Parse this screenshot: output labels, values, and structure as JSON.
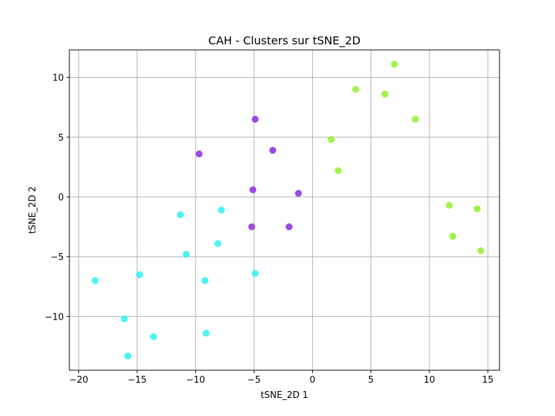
{
  "chart_data": {
    "type": "scatter",
    "title": "CAH - Clusters sur tSNE_2D",
    "xlabel": "tSNE_2D 1",
    "ylabel": "tSNE_2D 2",
    "xlim": [
      -20.8,
      16.0
    ],
    "ylim": [
      -14.5,
      12.3
    ],
    "xticks": [
      -20,
      -15,
      -10,
      -5,
      0,
      5,
      10,
      15
    ],
    "yticks": [
      -10,
      -5,
      0,
      5,
      10
    ],
    "xtick_labels": [
      "−20",
      "−15",
      "−10",
      "−5",
      "0",
      "5",
      "10",
      "15"
    ],
    "ytick_labels": [
      "−10",
      "−5",
      "0",
      "5",
      "10"
    ],
    "grid": true,
    "series": [
      {
        "color": "#8a2be2",
        "x": [
          -4.9,
          -9.7,
          -3.4,
          -5.1,
          -1.2,
          -5.2,
          -2.0
        ],
        "y": [
          6.5,
          3.6,
          3.9,
          0.6,
          0.3,
          -2.5,
          -2.5
        ]
      },
      {
        "color": "#2ef2f2",
        "x": [
          -11.3,
          -7.8,
          -8.1,
          -10.8,
          -4.9,
          -14.8,
          -9.2,
          -18.6,
          -16.1,
          -13.6,
          -9.1,
          -15.8
        ],
        "y": [
          -1.5,
          -1.1,
          -3.9,
          -4.8,
          -6.4,
          -6.5,
          -7.0,
          -7.0,
          -10.2,
          -11.7,
          -11.4,
          -13.3
        ]
      },
      {
        "color": "#90f02e",
        "x": [
          7.0,
          3.7,
          6.2,
          8.8,
          1.6,
          2.2,
          11.7,
          14.1,
          12.0,
          14.4
        ],
        "y": [
          11.1,
          9.0,
          8.6,
          6.5,
          4.8,
          2.2,
          -0.7,
          -1.0,
          -3.3,
          -4.5
        ]
      }
    ]
  }
}
